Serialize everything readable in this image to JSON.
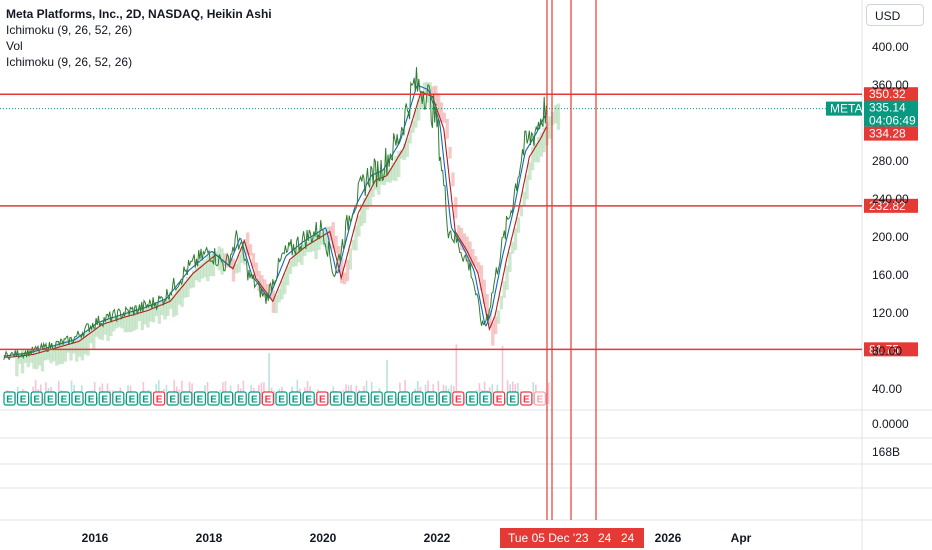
{
  "legend": {
    "title": "Meta Platforms, Inc., 2D, NASDAQ, Heikin Ashi",
    "line1": "Ichimoku (9, 26, 52, 26)",
    "line2": "Vol",
    "line3": "Ichimoku (9, 26, 52, 26)"
  },
  "currency_button": "USD",
  "colors": {
    "price_line": "#2e7d32",
    "conversion_line": "#1565c0",
    "base_line": "#b71c1c",
    "cloud_bull": "#a5d6a7",
    "cloud_bear": "#ef9a9a",
    "horizontal_line": "#e53935",
    "meta_tag": "#089981",
    "earnings_green": "#089981",
    "earnings_red": "#f23645"
  },
  "chart_data": {
    "type": "line",
    "title": "Meta Platforms, Inc., 2D, NASDAQ, Heikin Ashi",
    "y_ticks": [
      "400.00",
      "360.00",
      "320.00",
      "280.00",
      "240.00",
      "200.00",
      "160.00",
      "120.00",
      "80.00",
      "40.00"
    ],
    "ylim": [
      0,
      420
    ],
    "x_ticks": [
      "2016",
      "2018",
      "2020",
      "2022",
      "2026",
      "Apr"
    ],
    "xlim": [
      2014.4,
      2026.7
    ],
    "price_series": {
      "x": [
        2014.4,
        2014.8,
        2015.2,
        2015.6,
        2016.0,
        2016.4,
        2016.8,
        2017.2,
        2017.6,
        2018.0,
        2018.3,
        2018.5,
        2018.7,
        2019.0,
        2019.3,
        2019.6,
        2020.0,
        2020.2,
        2020.5,
        2020.8,
        2021.0,
        2021.3,
        2021.6,
        2021.8,
        2022.0,
        2022.2,
        2022.4,
        2022.6,
        2022.8,
        2022.9,
        2023.1,
        2023.3,
        2023.5,
        2023.7,
        2023.9
      ],
      "y": [
        75,
        78,
        85,
        92,
        110,
        118,
        125,
        135,
        165,
        185,
        170,
        200,
        160,
        135,
        180,
        195,
        210,
        160,
        230,
        265,
        270,
        300,
        360,
        355,
        320,
        210,
        190,
        165,
        105,
        120,
        180,
        230,
        290,
        310,
        335
      ]
    },
    "volume_label": "168B",
    "volume_axis_tick": "0.0000",
    "horizontal_levels": [
      {
        "value": 350.32,
        "label": "350.32"
      },
      {
        "value": 232.82,
        "label": "232.82"
      },
      {
        "value": 81.75,
        "label": "81.75"
      }
    ],
    "last_price": {
      "symbol": "META",
      "value": "335.14",
      "countdown": "04:06:49",
      "low_label": "334.28"
    },
    "earnings_markers": [
      "E",
      "E",
      "E",
      "E",
      "E",
      "E",
      "E",
      "E",
      "E",
      "E",
      "E",
      "E",
      "E",
      "E",
      "E",
      "E",
      "E",
      "E",
      "E",
      "E",
      "E",
      "E",
      "E",
      "E",
      "E",
      "E",
      "E",
      "E",
      "E",
      "E",
      "E",
      "E",
      "E",
      "E",
      "E",
      "E",
      "E",
      "E",
      "E",
      "E"
    ],
    "earnings_red_indices": [
      11,
      19,
      23,
      33,
      36,
      38,
      39
    ],
    "crosshair_label": "Tue 05 Dec '23",
    "extra_x_labels": [
      "24",
      "24"
    ]
  }
}
